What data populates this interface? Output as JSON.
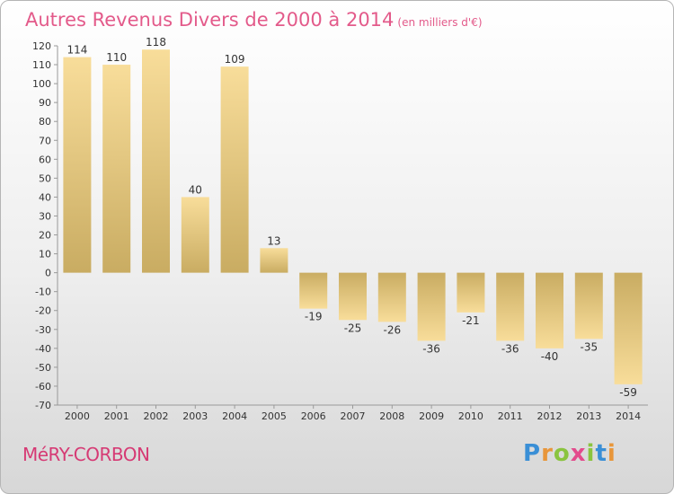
{
  "chart_data": {
    "type": "bar",
    "title": "Autres Revenus Divers de 2000 à 2014",
    "unit_note": "(en milliers d'€)",
    "categories": [
      "2000",
      "2001",
      "2002",
      "2003",
      "2004",
      "2005",
      "2006",
      "2007",
      "2008",
      "2009",
      "2010",
      "2011",
      "2012",
      "2013",
      "2014"
    ],
    "values": [
      114,
      110,
      118,
      40,
      109,
      13,
      -19,
      -25,
      -26,
      -36,
      -21,
      -36,
      -40,
      -35,
      -59
    ],
    "ylim": [
      -70,
      120
    ],
    "yticks": [
      120,
      110,
      100,
      90,
      80,
      70,
      60,
      50,
      40,
      30,
      20,
      10,
      0,
      -10,
      -20,
      -30,
      -40,
      -50,
      -60,
      -70
    ],
    "xlabel": "",
    "ylabel": "",
    "grid": false,
    "bar_color_light": "#f8dd9a",
    "bar_color_dark": "#c9ac62"
  },
  "commune_name": "MéRY-CORBON",
  "logo": {
    "letters": [
      "P",
      "r",
      "o",
      "x",
      "i",
      "t",
      "i"
    ],
    "colors": [
      "#3a8fd6",
      "#e8963a",
      "#8ac43f",
      "#e34b8c",
      "#8ac43f",
      "#3a8fd6",
      "#e8963a"
    ]
  },
  "colors": {
    "title": "#e35a8a",
    "commune": "#d63a74"
  }
}
